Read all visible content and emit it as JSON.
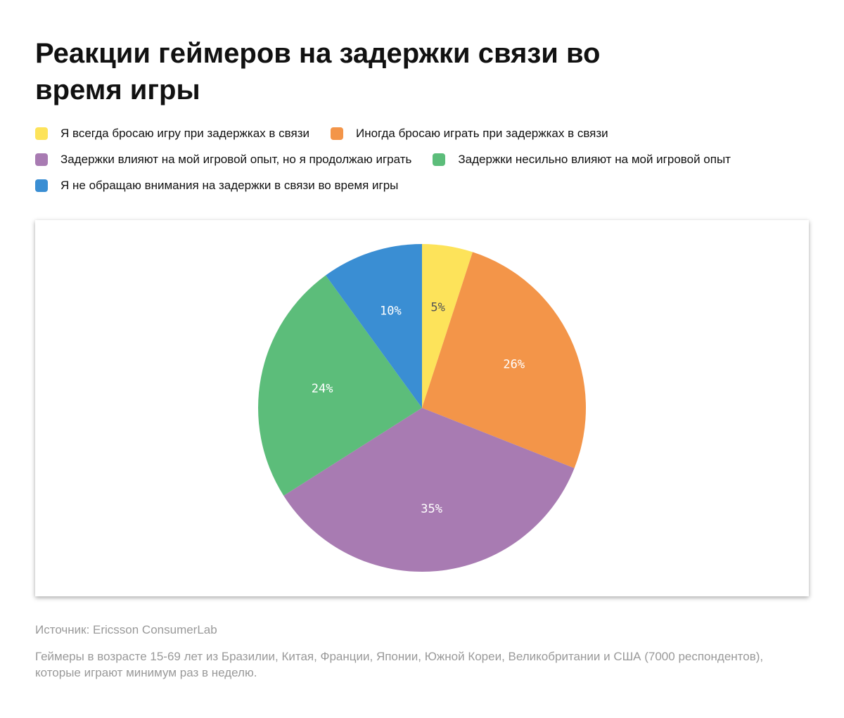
{
  "chart_data": {
    "type": "pie",
    "title": "Реакции геймеров на задержки связи во время игры",
    "categories": [
      "Я всегда бросаю игру при задержках в связи",
      "Иногда бросаю играть при задержках в связи",
      "Задержки влияют на мой игровой опыт, но я продолжаю играть",
      "Задержки несильно влияют на мой игровой опыт",
      "Я не обращаю внимания на задержки в связи во время игры"
    ],
    "values": [
      5,
      26,
      35,
      24,
      10
    ],
    "value_labels": [
      "5%",
      "26%",
      "35%",
      "24%",
      "10%"
    ],
    "colors": [
      "#fde35a",
      "#f39549",
      "#a87bb2",
      "#5cbd7a",
      "#3a8ed3"
    ],
    "source": "Источник: Ericsson ConsumerLab",
    "note": "Геймеры в возрасте 15-69 лет из Бразилии, Китая, Франции, Японии, Южной Кореи, Великобритании и США (7000 респондентов), которые играют минимум раз в неделю."
  }
}
